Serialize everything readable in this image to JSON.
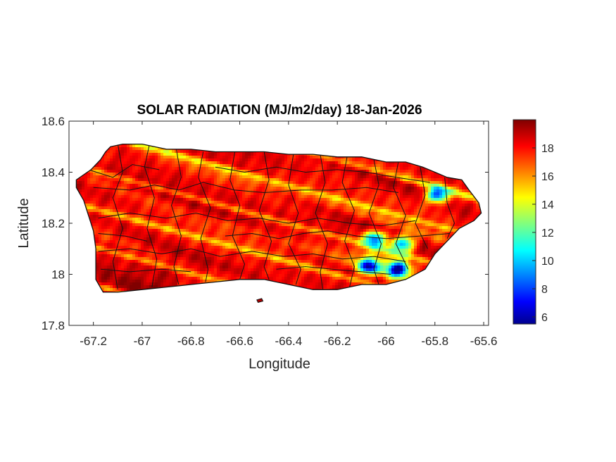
{
  "chart_data": {
    "type": "heatmap",
    "title": "SOLAR RADIATION (MJ/m2/day) 18-Jan-2026",
    "xlabel": "Longitude",
    "ylabel": "Latitude",
    "xlim": [
      -67.3,
      -65.58
    ],
    "ylim": [
      17.8,
      18.6
    ],
    "xticks": [
      -67.2,
      -67,
      -66.8,
      -66.6,
      -66.4,
      -66.2,
      -66,
      -65.8,
      -65.6
    ],
    "xtick_labels": [
      "-67.2",
      "-67",
      "-66.8",
      "-66.6",
      "-66.4",
      "-66.2",
      "-66",
      "-65.8",
      "-65.6"
    ],
    "yticks": [
      17.8,
      18,
      18.2,
      18.4,
      18.6
    ],
    "ytick_labels": [
      "17.8",
      "18",
      "18.2",
      "18.4",
      "18.6"
    ],
    "grid": false,
    "colormap": "jet",
    "colorbar": {
      "range": [
        5.5,
        20
      ],
      "ticks": [
        6,
        8,
        10,
        12,
        14,
        16,
        18
      ],
      "tick_labels": [
        "6",
        "8",
        "10",
        "12",
        "14",
        "16",
        "18"
      ],
      "placement": "right"
    },
    "field_summary": {
      "typical_range": [
        16,
        19.5
      ],
      "bright_bands": "yellow-orange streaks (~14-16) running ESE across the island",
      "minimum_regions": [
        {
          "lon": -65.79,
          "lat": 18.31,
          "value": 8
        },
        {
          "lon": -65.95,
          "lat": 18.02,
          "value": 7
        },
        {
          "lon": -66.07,
          "lat": 18.03,
          "value": 9
        },
        {
          "lon": -66.05,
          "lat": 18.14,
          "value": 10
        },
        {
          "lon": -65.93,
          "lat": 18.12,
          "value": 11
        }
      ],
      "south_coast_max": 20
    }
  }
}
